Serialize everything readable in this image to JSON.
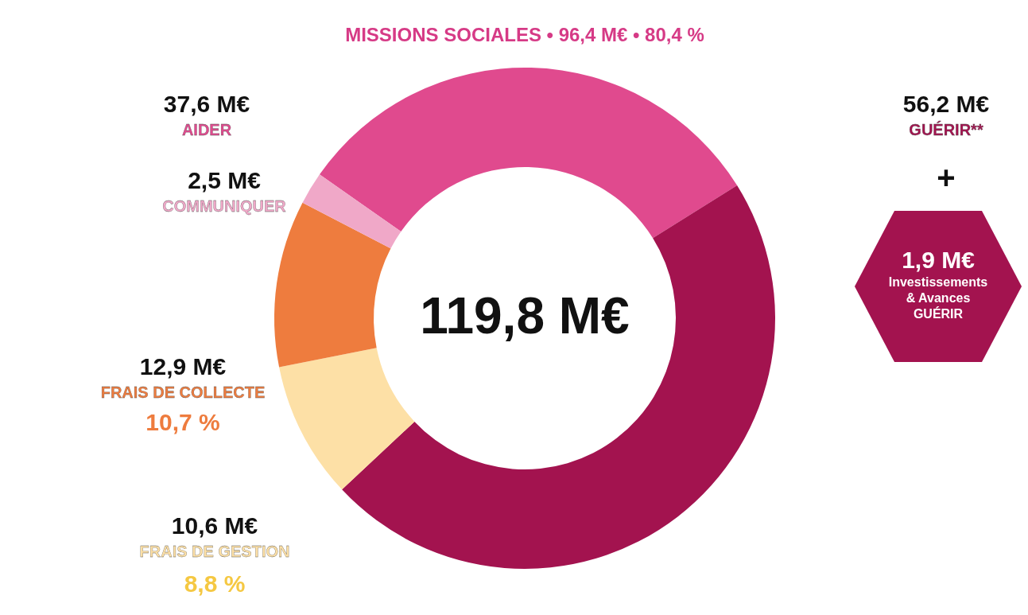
{
  "chart_data": {
    "type": "donut",
    "categories": [
      "AIDER",
      "GUÉRIR**",
      "FRAIS DE GESTION",
      "FRAIS DE COLLECTE",
      "COMMUNIQUER"
    ],
    "values": [
      37.6,
      56.2,
      10.6,
      12.9,
      2.5
    ],
    "colors": [
      "#e04a8e",
      "#a3134f",
      "#fde0a6",
      "#ee7c3e",
      "#f0a8c8"
    ],
    "value_labels": [
      "37,6 M€",
      "56,2 M€",
      "10,6 M€",
      "12,9 M€",
      "2,5 M€"
    ],
    "annotations": [
      "MISSIONS SOCIALES • 96,4 M€ • 80,4 %",
      "119,8 M€",
      "10,7 %",
      "8,8 %",
      "+",
      "1,9 M€",
      "Investissements",
      "& Avances",
      "GUÉRIR"
    ]
  }
}
